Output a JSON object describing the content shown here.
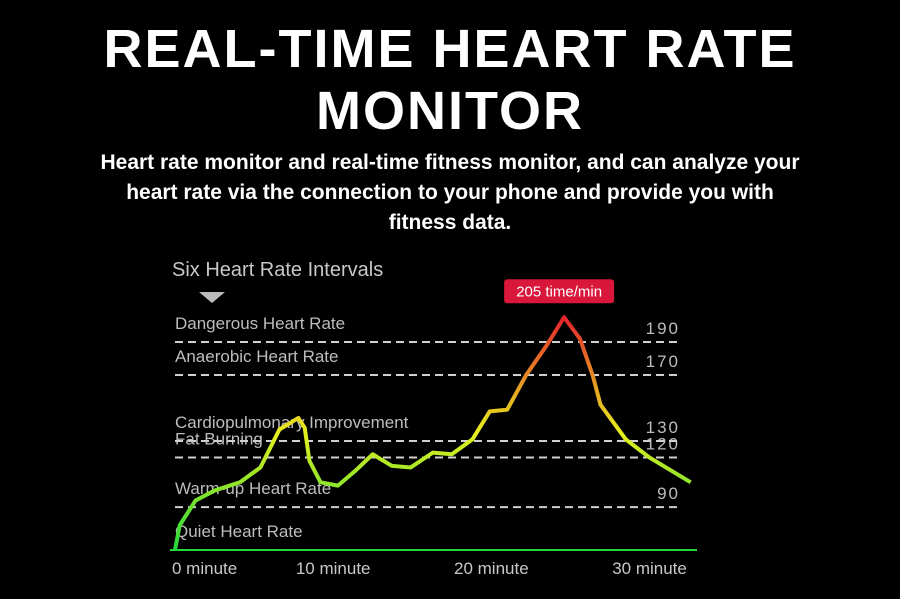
{
  "chart_data": {
    "type": "line",
    "title": "REAL-TIME HEART RATE MONITOR",
    "subtitle": "Heart rate monitor and real-time fitness monitor, and can analyze your heart rate via the connection to your phone and provide you with fitness data.",
    "annotation": "Six Heart Rate Intervals",
    "peak_label": "205 time/min",
    "zones": [
      "Quiet Heart Rate",
      "Warm-up Heart Rate",
      "Fat Burning",
      "Cardiopulmonary Improvement",
      "Anaerobic Heart Rate",
      "Dangerous Heart Rate"
    ],
    "xlim": [
      0,
      33
    ],
    "xticks": [
      {
        "value": 0,
        "label": "0 minute"
      },
      {
        "value": 10,
        "label": "10 minute"
      },
      {
        "value": 20,
        "label": "20 minute"
      },
      {
        "value": 30,
        "label": "30 minute"
      }
    ],
    "ylim": [
      64,
      210
    ],
    "yticks": [
      90,
      120,
      130,
      170,
      190
    ],
    "colors": [
      "#22d83a",
      "#e6ef1e",
      "#e5202c"
    ],
    "series": [
      {
        "x": [
          0,
          0.3,
          1.3,
          2.5,
          4.1,
          5.4,
          6.6,
          7.8,
          8.2,
          8.5,
          9.2,
          10.3,
          11.4,
          12.5,
          13.7,
          14.9,
          16.3,
          17.5,
          18.8,
          19.9,
          21,
          22.2,
          23.5,
          24.6,
          25.6,
          26.4,
          26.9,
          28.5,
          30,
          32.6
        ],
        "values": [
          64,
          79,
          94,
          100,
          105,
          114,
          137,
          144,
          138,
          118,
          105,
          103,
          112,
          122,
          115,
          114,
          123,
          122,
          131,
          148,
          149,
          170,
          188,
          205,
          192,
          170,
          152,
          131,
          120,
          105
        ]
      }
    ]
  }
}
